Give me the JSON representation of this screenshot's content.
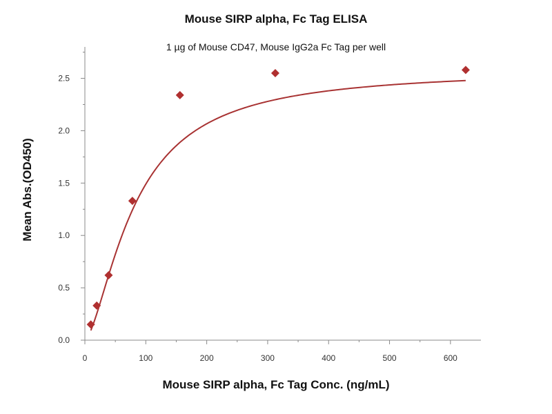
{
  "chart_data": {
    "type": "scatter",
    "title": "Mouse SIRP alpha, Fc Tag ELISA",
    "subtitle": "1 µg of Mouse CD47, Mouse IgG2a Fc Tag per well",
    "xlabel": "Mouse SIRP alpha, Fc Tag Conc. (ng/mL)",
    "ylabel": "Mean Abs.(OD450)",
    "xlim": [
      0,
      650
    ],
    "ylim": [
      0,
      2.8
    ],
    "x_ticks": [
      0,
      100,
      200,
      300,
      400,
      500,
      600
    ],
    "y_ticks": [
      0.0,
      0.5,
      1.0,
      1.5,
      2.0,
      2.5
    ],
    "x_tick_labels": [
      "0",
      "100",
      "200",
      "300",
      "400",
      "500",
      "600"
    ],
    "y_tick_labels": [
      "0.0",
      "0.5",
      "1.0",
      "1.5",
      "2.0",
      "2.5"
    ],
    "grid": false,
    "series": [
      {
        "x": [
          9.8,
          19.5,
          39,
          78,
          156,
          312.5,
          625
        ],
        "y": [
          0.15,
          0.33,
          0.62,
          1.33,
          2.34,
          2.55,
          2.58
        ],
        "color": "#b03030",
        "marker": "diamond",
        "fit_curve": true,
        "fit_color": "#a83232"
      }
    ]
  }
}
